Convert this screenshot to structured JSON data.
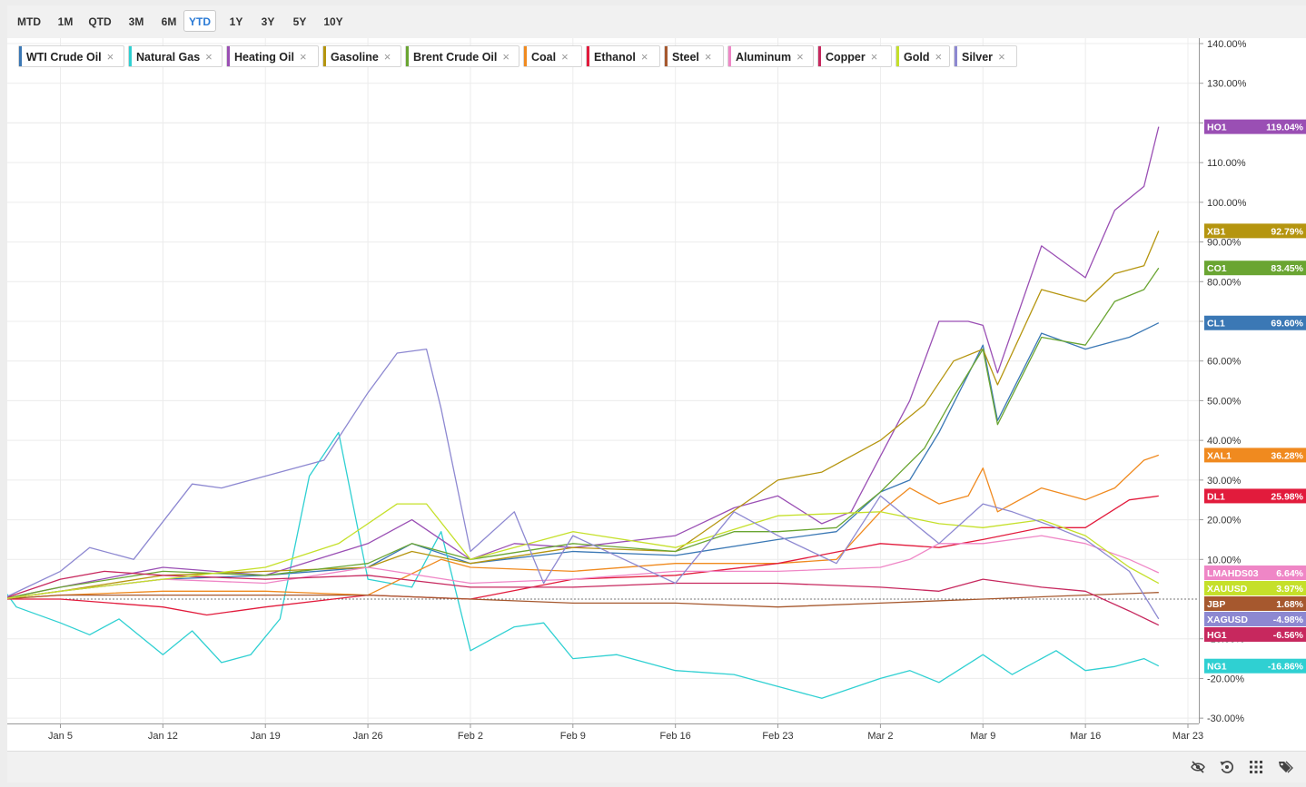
{
  "range_buttons": [
    {
      "label": "MTD",
      "active": false
    },
    {
      "label": "1M",
      "active": false
    },
    {
      "label": "QTD",
      "active": false
    },
    {
      "label": "3M",
      "active": false
    },
    {
      "label": "6M",
      "active": false
    },
    {
      "label": "YTD",
      "active": true
    },
    {
      "label": "1Y",
      "active": false
    },
    {
      "label": "3Y",
      "active": false
    },
    {
      "label": "5Y",
      "active": false
    },
    {
      "label": "10Y",
      "active": false
    }
  ],
  "legend": [
    {
      "label": "WTI Crude Oil",
      "color": "#3b78b5"
    },
    {
      "label": "Natural Gas",
      "color": "#2fd0d2"
    },
    {
      "label": "Heating Oil",
      "color": "#9a4fb4"
    },
    {
      "label": "Gasoline",
      "color": "#b5950f"
    },
    {
      "label": "Brent Crude Oil",
      "color": "#6aa532"
    },
    {
      "label": "Coal",
      "color": "#f08a1f"
    },
    {
      "label": "Ethanol",
      "color": "#e21b3c"
    },
    {
      "label": "Steel",
      "color": "#a6582e"
    },
    {
      "label": "Aluminum",
      "color": "#ef86c6"
    },
    {
      "label": "Copper",
      "color": "#c7285e"
    },
    {
      "label": "Gold",
      "color": "#c5e02a"
    },
    {
      "label": "Silver",
      "color": "#8d88d1"
    }
  ],
  "bottom_tools": [
    "visibility-off-icon",
    "reset-icon",
    "grid-icon",
    "tags-icon"
  ],
  "chart_data": {
    "type": "line",
    "y_unit": "%",
    "ylim": [
      -30,
      140
    ],
    "y_ticks": [
      "140.00%",
      "130.00%",
      "120.00%",
      "110.00%",
      "100.00%",
      "90.00%",
      "80.00%",
      "70.00%",
      "60.00%",
      "50.00%",
      "40.00%",
      "30.00%",
      "20.00%",
      "10.00%",
      "-10.00%",
      "-20.00%",
      "-30.00%"
    ],
    "y_tick_values": [
      140,
      130,
      120,
      110,
      100,
      90,
      80,
      70,
      60,
      50,
      40,
      30,
      20,
      10,
      -10,
      -20,
      -30
    ],
    "xlim": [
      "2026-01-01",
      "2026-03-23"
    ],
    "x_ticks": [
      "Jan 5",
      "Jan 12",
      "Jan 19",
      "Jan 26",
      "Feb 2",
      "Feb 9",
      "Feb 16",
      "Feb 23",
      "Mar 2",
      "Mar 9",
      "Mar 16",
      "Mar 23"
    ],
    "x_tick_dates": [
      "2026-01-05",
      "2026-01-12",
      "2026-01-19",
      "2026-01-26",
      "2026-02-02",
      "2026-02-09",
      "2026-02-16",
      "2026-02-23",
      "2026-03-02",
      "2026-03-09",
      "2026-03-16",
      "2026-03-23"
    ],
    "grid": true,
    "legend_position": "top-left",
    "series": [
      {
        "name": "WTI Crude Oil",
        "ticker": "CL1",
        "last_label": "69.60%",
        "last": 69.6,
        "color": "#3b78b5",
        "x": [
          "2026-01-01",
          "2026-01-05",
          "2026-01-12",
          "2026-01-19",
          "2026-01-26",
          "2026-01-29",
          "2026-02-02",
          "2026-02-09",
          "2026-02-16",
          "2026-02-23",
          "2026-02-27",
          "2026-03-02",
          "2026-03-04",
          "2026-03-06",
          "2026-03-09",
          "2026-03-10",
          "2026-03-13",
          "2026-03-16",
          "2026-03-19",
          "2026-03-21"
        ],
        "y": [
          0,
          2,
          5,
          6,
          8,
          14,
          9,
          12,
          11,
          15,
          17,
          27,
          30,
          42,
          64,
          45,
          67,
          63,
          66,
          69.6
        ]
      },
      {
        "name": "Natural Gas",
        "ticker": "NG1",
        "last_label": "-16.86%",
        "last": -16.86,
        "color": "#2fd0d2",
        "x": [
          "2026-01-01",
          "2026-01-02",
          "2026-01-05",
          "2026-01-07",
          "2026-01-09",
          "2026-01-12",
          "2026-01-14",
          "2026-01-16",
          "2026-01-18",
          "2026-01-20",
          "2026-01-22",
          "2026-01-24",
          "2026-01-26",
          "2026-01-29",
          "2026-01-31",
          "2026-02-02",
          "2026-02-05",
          "2026-02-07",
          "2026-02-09",
          "2026-02-12",
          "2026-02-16",
          "2026-02-20",
          "2026-02-23",
          "2026-02-26",
          "2026-03-02",
          "2026-03-04",
          "2026-03-06",
          "2026-03-09",
          "2026-03-11",
          "2026-03-14",
          "2026-03-16",
          "2026-03-18",
          "2026-03-20",
          "2026-03-21"
        ],
        "y": [
          3,
          -2,
          -6,
          -9,
          -5,
          -14,
          -8,
          -16,
          -14,
          -5,
          31,
          42,
          5,
          3,
          17,
          -13,
          -7,
          -6,
          -15,
          -14,
          -18,
          -19,
          -22,
          -25,
          -20,
          -18,
          -21,
          -14,
          -19,
          -13,
          -18,
          -17,
          -15,
          -16.86
        ]
      },
      {
        "name": "Heating Oil",
        "ticker": "HO1",
        "last_label": "119.04%",
        "last": 119.04,
        "color": "#9a4fb4",
        "x": [
          "2026-01-01",
          "2026-01-05",
          "2026-01-12",
          "2026-01-19",
          "2026-01-26",
          "2026-01-29",
          "2026-02-02",
          "2026-02-05",
          "2026-02-09",
          "2026-02-16",
          "2026-02-20",
          "2026-02-23",
          "2026-02-26",
          "2026-02-28",
          "2026-03-02",
          "2026-03-04",
          "2026-03-06",
          "2026-03-08",
          "2026-03-09",
          "2026-03-10",
          "2026-03-13",
          "2026-03-16",
          "2026-03-18",
          "2026-03-20",
          "2026-03-21"
        ],
        "y": [
          0,
          3,
          8,
          6,
          14,
          20,
          10,
          14,
          13,
          16,
          23,
          26,
          19,
          22,
          36,
          50,
          70,
          70,
          69,
          57,
          89,
          81,
          98,
          104,
          119.04
        ]
      },
      {
        "name": "Gasoline",
        "ticker": "XB1",
        "last_label": "92.79%",
        "last": 92.79,
        "color": "#b5950f",
        "x": [
          "2026-01-01",
          "2026-01-05",
          "2026-01-12",
          "2026-01-19",
          "2026-01-26",
          "2026-01-29",
          "2026-02-02",
          "2026-02-09",
          "2026-02-16",
          "2026-02-23",
          "2026-02-26",
          "2026-03-02",
          "2026-03-05",
          "2026-03-07",
          "2026-03-09",
          "2026-03-10",
          "2026-03-13",
          "2026-03-16",
          "2026-03-18",
          "2026-03-20",
          "2026-03-21"
        ],
        "y": [
          0,
          2,
          6,
          7,
          8,
          12,
          9,
          13,
          12,
          30,
          32,
          40,
          49,
          60,
          63,
          54,
          78,
          75,
          82,
          84,
          92.79
        ]
      },
      {
        "name": "Brent Crude Oil",
        "ticker": "CO1",
        "last_label": "83.45%",
        "last": 83.45,
        "color": "#6aa532",
        "x": [
          "2026-01-01",
          "2026-01-05",
          "2026-01-12",
          "2026-01-19",
          "2026-01-26",
          "2026-01-29",
          "2026-02-02",
          "2026-02-09",
          "2026-02-16",
          "2026-02-20",
          "2026-02-23",
          "2026-02-27",
          "2026-03-02",
          "2026-03-05",
          "2026-03-07",
          "2026-03-09",
          "2026-03-10",
          "2026-03-13",
          "2026-03-16",
          "2026-03-18",
          "2026-03-20",
          "2026-03-21"
        ],
        "y": [
          0,
          3,
          7,
          6,
          9,
          14,
          10,
          14,
          12,
          17,
          17,
          18,
          27,
          38,
          51,
          63,
          44,
          66,
          64,
          75,
          78,
          83.45
        ]
      },
      {
        "name": "Coal",
        "ticker": "XAL1",
        "last_label": "36.28%",
        "last": 36.28,
        "color": "#f08a1f",
        "x": [
          "2026-01-01",
          "2026-01-05",
          "2026-01-12",
          "2026-01-19",
          "2026-01-26",
          "2026-01-31",
          "2026-02-02",
          "2026-02-09",
          "2026-02-16",
          "2026-02-23",
          "2026-02-27",
          "2026-03-02",
          "2026-03-04",
          "2026-03-06",
          "2026-03-08",
          "2026-03-09",
          "2026-03-10",
          "2026-03-13",
          "2026-03-16",
          "2026-03-18",
          "2026-03-20",
          "2026-03-21"
        ],
        "y": [
          0,
          1,
          2,
          2,
          1,
          10,
          8,
          7,
          9,
          9,
          10,
          22,
          28,
          24,
          26,
          33,
          22,
          28,
          25,
          28,
          35,
          36.28
        ]
      },
      {
        "name": "Ethanol",
        "ticker": "DL1",
        "last_label": "25.98%",
        "last": 25.98,
        "color": "#e21b3c",
        "x": [
          "2026-01-01",
          "2026-01-05",
          "2026-01-12",
          "2026-01-15",
          "2026-01-19",
          "2026-01-26",
          "2026-02-02",
          "2026-02-09",
          "2026-02-16",
          "2026-02-23",
          "2026-03-02",
          "2026-03-06",
          "2026-03-09",
          "2026-03-13",
          "2026-03-16",
          "2026-03-19",
          "2026-03-21"
        ],
        "y": [
          0,
          0,
          -2,
          -4,
          -2,
          1,
          0,
          5,
          6,
          9,
          14,
          13,
          15,
          18,
          18,
          25,
          25.98
        ]
      },
      {
        "name": "Steel",
        "ticker": "JBP",
        "last_label": "1.68%",
        "last": 1.68,
        "color": "#a6582e",
        "x": [
          "2026-01-01",
          "2026-01-05",
          "2026-01-12",
          "2026-01-19",
          "2026-01-26",
          "2026-02-02",
          "2026-02-09",
          "2026-02-16",
          "2026-02-23",
          "2026-03-02",
          "2026-03-09",
          "2026-03-16",
          "2026-03-21"
        ],
        "y": [
          0,
          1,
          1,
          1,
          1,
          0,
          -1,
          -1,
          -2,
          -1,
          0,
          1,
          1.68
        ]
      },
      {
        "name": "Aluminum",
        "ticker": "LMAHDS03",
        "last_label": "6.64%",
        "last": 6.64,
        "color": "#ef86c6",
        "x": [
          "2026-01-01",
          "2026-01-05",
          "2026-01-12",
          "2026-01-19",
          "2026-01-26",
          "2026-02-02",
          "2026-02-09",
          "2026-02-16",
          "2026-02-23",
          "2026-03-02",
          "2026-03-04",
          "2026-03-06",
          "2026-03-09",
          "2026-03-13",
          "2026-03-16",
          "2026-03-19",
          "2026-03-21"
        ],
        "y": [
          0,
          2,
          5,
          4,
          8,
          4,
          5,
          7,
          7,
          8,
          10,
          14,
          14,
          16,
          14,
          10,
          6.64
        ]
      },
      {
        "name": "Copper",
        "ticker": "HG1",
        "last_label": "-6.56%",
        "last": -6.56,
        "color": "#c7285e",
        "x": [
          "2026-01-01",
          "2026-01-05",
          "2026-01-08",
          "2026-01-12",
          "2026-01-19",
          "2026-01-26",
          "2026-02-02",
          "2026-02-09",
          "2026-02-16",
          "2026-02-23",
          "2026-03-02",
          "2026-03-06",
          "2026-03-09",
          "2026-03-13",
          "2026-03-16",
          "2026-03-19",
          "2026-03-21"
        ],
        "y": [
          0,
          5,
          7,
          6,
          5,
          6,
          3,
          3,
          4,
          4,
          3,
          2,
          5,
          3,
          2,
          -3,
          -6.56
        ]
      },
      {
        "name": "Gold",
        "ticker": "XAUUSD",
        "last_label": "3.97%",
        "last": 3.97,
        "color": "#c5e02a",
        "x": [
          "2026-01-01",
          "2026-01-05",
          "2026-01-12",
          "2026-01-19",
          "2026-01-24",
          "2026-01-28",
          "2026-01-30",
          "2026-02-02",
          "2026-02-09",
          "2026-02-16",
          "2026-02-23",
          "2026-03-02",
          "2026-03-06",
          "2026-03-09",
          "2026-03-13",
          "2026-03-16",
          "2026-03-19",
          "2026-03-21"
        ],
        "y": [
          0,
          2,
          5,
          8,
          14,
          24,
          24,
          10,
          17,
          13,
          21,
          22,
          19,
          18,
          20,
          16,
          8,
          3.97
        ]
      },
      {
        "name": "Silver",
        "ticker": "XAGUSD",
        "last_label": "-4.98%",
        "last": -4.98,
        "color": "#8d88d1",
        "x": [
          "2026-01-01",
          "2026-01-05",
          "2026-01-07",
          "2026-01-10",
          "2026-01-14",
          "2026-01-16",
          "2026-01-19",
          "2026-01-23",
          "2026-01-26",
          "2026-01-28",
          "2026-01-30",
          "2026-01-31",
          "2026-02-02",
          "2026-02-05",
          "2026-02-07",
          "2026-02-09",
          "2026-02-16",
          "2026-02-20",
          "2026-02-23",
          "2026-02-27",
          "2026-03-02",
          "2026-03-04",
          "2026-03-06",
          "2026-03-09",
          "2026-03-11",
          "2026-03-14",
          "2026-03-16",
          "2026-03-19",
          "2026-03-21"
        ],
        "y": [
          0,
          7,
          13,
          10,
          29,
          28,
          31,
          35,
          52,
          62,
          63,
          48,
          12,
          22,
          4,
          16,
          4,
          22,
          16,
          9,
          26,
          20,
          14,
          24,
          22,
          18,
          15,
          7,
          -4.98
        ]
      }
    ]
  }
}
